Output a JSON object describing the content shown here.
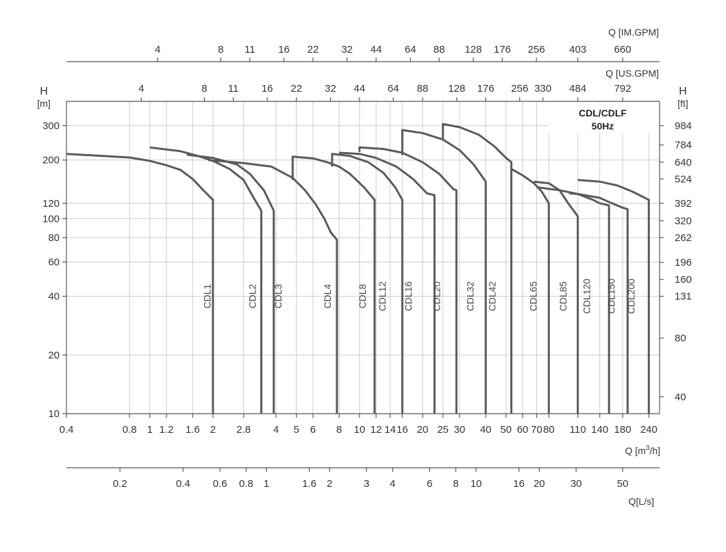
{
  "chart_data": {
    "type": "line",
    "title": "CDL/CDLF",
    "subtitle": "50Hz",
    "x_scale": "log",
    "y_scale": "log",
    "xlim": [
      0.4,
      270
    ],
    "ylim": [
      10,
      400
    ],
    "bottom_axis": {
      "label": "Q [m³/h]",
      "unit_main": "Q [m",
      "unit_sup": "3",
      "unit_tail": "/h]",
      "ticks": [
        {
          "label": "0.4",
          "value": 0.4
        },
        {
          "label": "0.8",
          "value": 0.8
        },
        {
          "label": "1",
          "value": 1
        },
        {
          "label": "1.2",
          "value": 1.2
        },
        {
          "label": "1.6",
          "value": 1.6
        },
        {
          "label": "2",
          "value": 2
        },
        {
          "label": "2.8",
          "value": 2.8
        },
        {
          "label": "4",
          "value": 4
        },
        {
          "label": "5",
          "value": 5
        },
        {
          "label": "6",
          "value": 6
        },
        {
          "label": "8",
          "value": 8
        },
        {
          "label": "10",
          "value": 10
        },
        {
          "label": "12",
          "value": 12
        },
        {
          "label": "14",
          "value": 14
        },
        {
          "label": "16",
          "value": 16
        },
        {
          "label": "20",
          "value": 20
        },
        {
          "label": "25",
          "value": 25
        },
        {
          "label": "30",
          "value": 30
        },
        {
          "label": "40",
          "value": 40
        },
        {
          "label": "50",
          "value": 50
        },
        {
          "label": "60",
          "value": 60
        },
        {
          "label": "70",
          "value": 70
        },
        {
          "label": "80",
          "value": 80
        },
        {
          "label": "110",
          "value": 110
        },
        {
          "label": "140",
          "value": 140
        },
        {
          "label": "180",
          "value": 180
        },
        {
          "label": "240",
          "value": 240
        }
      ]
    },
    "ls_axis": {
      "label": "Q[L/s]",
      "ticks": [
        {
          "label": "0.2",
          "value": 0.72
        },
        {
          "label": "0.4",
          "value": 1.44
        },
        {
          "label": "0.6",
          "value": 2.16
        },
        {
          "label": "0.8",
          "value": 2.88
        },
        {
          "label": "1",
          "value": 3.6
        },
        {
          "label": "1.6",
          "value": 5.76
        },
        {
          "label": "2",
          "value": 7.2
        },
        {
          "label": "3",
          "value": 10.8
        },
        {
          "label": "4",
          "value": 14.4
        },
        {
          "label": "6",
          "value": 21.6
        },
        {
          "label": "8",
          "value": 28.8
        },
        {
          "label": "10",
          "value": 36
        },
        {
          "label": "16",
          "value": 57.6
        },
        {
          "label": "20",
          "value": 72
        },
        {
          "label": "30",
          "value": 108
        },
        {
          "label": "50",
          "value": 180
        }
      ]
    },
    "usgpm_axis": {
      "label": "Q [US.GPM]",
      "ticks": [
        {
          "label": "4",
          "value": 0.91
        },
        {
          "label": "8",
          "value": 1.82
        },
        {
          "label": "11",
          "value": 2.5
        },
        {
          "label": "16",
          "value": 3.63
        },
        {
          "label": "22",
          "value": 5.0
        },
        {
          "label": "32",
          "value": 7.27
        },
        {
          "label": "44",
          "value": 10.0
        },
        {
          "label": "64",
          "value": 14.5
        },
        {
          "label": "88",
          "value": 20.0
        },
        {
          "label": "128",
          "value": 29.1
        },
        {
          "label": "176",
          "value": 40.0
        },
        {
          "label": "256",
          "value": 58.1
        },
        {
          "label": "330",
          "value": 75.0
        },
        {
          "label": "484",
          "value": 110.0
        },
        {
          "label": "792",
          "value": 180.0
        }
      ]
    },
    "imgpm_axis": {
      "label": "Q [IM.GPM]",
      "ticks": [
        {
          "label": "4",
          "value": 1.09
        },
        {
          "label": "8",
          "value": 2.18
        },
        {
          "label": "11",
          "value": 3.0
        },
        {
          "label": "16",
          "value": 4.36
        },
        {
          "label": "22",
          "value": 6.0
        },
        {
          "label": "32",
          "value": 8.72
        },
        {
          "label": "44",
          "value": 12.0
        },
        {
          "label": "64",
          "value": 17.5
        },
        {
          "label": "88",
          "value": 24.0
        },
        {
          "label": "128",
          "value": 34.9
        },
        {
          "label": "176",
          "value": 48.0
        },
        {
          "label": "256",
          "value": 69.8
        },
        {
          "label": "403",
          "value": 110.0
        },
        {
          "label": "660",
          "value": 180.0
        }
      ]
    },
    "left_axis": {
      "label": "H",
      "unit": "[m]",
      "ticks": [
        {
          "label": "300",
          "value": 300
        },
        {
          "label": "200",
          "value": 200
        },
        {
          "label": "120",
          "value": 120
        },
        {
          "label": "100",
          "value": 100
        },
        {
          "label": "80",
          "value": 80
        },
        {
          "label": "60",
          "value": 60
        },
        {
          "label": "40",
          "value": 40
        },
        {
          "label": "20",
          "value": 20
        },
        {
          "label": "10",
          "value": 10
        }
      ]
    },
    "right_axis": {
      "label": "H",
      "unit": "[ft]",
      "ticks": [
        {
          "label": "984",
          "value": 300
        },
        {
          "label": "784",
          "value": 239
        },
        {
          "label": "640",
          "value": 195
        },
        {
          "label": "524",
          "value": 160
        },
        {
          "label": "392",
          "value": 120
        },
        {
          "label": "320",
          "value": 97.5
        },
        {
          "label": "262",
          "value": 80
        },
        {
          "label": "196",
          "value": 59.7
        },
        {
          "label": "160",
          "value": 48.8
        },
        {
          "label": "131",
          "value": 40
        },
        {
          "label": "80",
          "value": 24.4
        },
        {
          "label": "40",
          "value": 12.2
        }
      ]
    },
    "v_grid_x": [
      0.8,
      1,
      1.2,
      1.6,
      2,
      2.8,
      4,
      5,
      6,
      8,
      10,
      12,
      14,
      16,
      20,
      25,
      30,
      40,
      50,
      60,
      70,
      80,
      110,
      140,
      180,
      240
    ],
    "h_grid_y": [
      300,
      200,
      120,
      100,
      80,
      60,
      40,
      20,
      10
    ],
    "series": [
      {
        "name": "CDL1",
        "label_x": 1.95,
        "label_y": 40,
        "points": [
          [
            0.4,
            215
          ],
          [
            0.8,
            206
          ],
          [
            1.0,
            198
          ],
          [
            1.2,
            188
          ],
          [
            1.4,
            178
          ],
          [
            1.6,
            160
          ],
          [
            1.8,
            140
          ],
          [
            2.0,
            125
          ],
          [
            2.0,
            10
          ]
        ]
      },
      {
        "name": "CDL2",
        "label_x": 3.2,
        "label_y": 40,
        "points": [
          [
            1.0,
            232
          ],
          [
            1.4,
            222
          ],
          [
            1.7,
            210
          ],
          [
            2.0,
            198
          ],
          [
            2.4,
            180
          ],
          [
            2.8,
            158
          ],
          [
            3.1,
            130
          ],
          [
            3.4,
            110
          ],
          [
            3.4,
            10
          ]
        ]
      },
      {
        "name": "CDL3",
        "label_x": 4.25,
        "label_y": 40,
        "points": [
          [
            1.5,
            213
          ],
          [
            2.0,
            205
          ],
          [
            2.6,
            190
          ],
          [
            3.0,
            170
          ],
          [
            3.5,
            140
          ],
          [
            3.9,
            110
          ],
          [
            3.9,
            10
          ]
        ]
      },
      {
        "name": "CDL4",
        "label_x": 7.3,
        "label_y": 40,
        "points": [
          [
            1.9,
            200
          ],
          [
            2.8,
            193
          ],
          [
            3.8,
            185
          ],
          [
            4.8,
            162
          ],
          [
            5.5,
            140
          ],
          [
            6.2,
            118
          ],
          [
            6.8,
            100
          ],
          [
            7.3,
            85
          ],
          [
            7.8,
            78
          ],
          [
            7.8,
            10
          ]
        ]
      },
      {
        "name": "CDL8",
        "label_x": 10.7,
        "label_y": 40,
        "points": [
          [
            4.8,
            158
          ],
          [
            4.8,
            208
          ],
          [
            6.0,
            204
          ],
          [
            7.0,
            195
          ],
          [
            8.0,
            185
          ],
          [
            9.0,
            170
          ],
          [
            10.5,
            145
          ],
          [
            11.8,
            125
          ],
          [
            11.8,
            10
          ]
        ]
      },
      {
        "name": "CDL12",
        "label_x": 13.3,
        "label_y": 40,
        "points": [
          [
            7.4,
            185
          ],
          [
            7.4,
            215
          ],
          [
            9.0,
            210
          ],
          [
            11.0,
            195
          ],
          [
            13.0,
            172
          ],
          [
            14.8,
            145
          ],
          [
            16.0,
            125
          ],
          [
            16.0,
            10
          ]
        ]
      },
      {
        "name": "CDL16",
        "label_x": 17.7,
        "label_y": 40,
        "points": [
          [
            8.0,
            218
          ],
          [
            10.0,
            215
          ],
          [
            12.0,
            205
          ],
          [
            15.0,
            185
          ],
          [
            18.0,
            160
          ],
          [
            21.0,
            135
          ],
          [
            22.8,
            132
          ],
          [
            22.8,
            10
          ]
        ]
      },
      {
        "name": "CDL20",
        "label_x": 24.2,
        "label_y": 40,
        "points": [
          [
            10.0,
            220
          ],
          [
            10.0,
            232
          ],
          [
            13.0,
            228
          ],
          [
            16.0,
            218
          ],
          [
            20.0,
            195
          ],
          [
            24.0,
            170
          ],
          [
            28.0,
            142
          ],
          [
            29.0,
            140
          ],
          [
            29.0,
            10
          ]
        ]
      },
      {
        "name": "CDL32",
        "label_x": 35,
        "label_y": 40,
        "points": [
          [
            16.0,
            212
          ],
          [
            16.0,
            285
          ],
          [
            20.0,
            275
          ],
          [
            25.0,
            255
          ],
          [
            30.0,
            225
          ],
          [
            35.0,
            190
          ],
          [
            40.0,
            155
          ],
          [
            40.0,
            10
          ]
        ]
      },
      {
        "name": "CDL42",
        "label_x": 44.5,
        "label_y": 40,
        "points": [
          [
            25.0,
            252
          ],
          [
            25.0,
            306
          ],
          [
            30.0,
            295
          ],
          [
            37.0,
            270
          ],
          [
            44.0,
            235
          ],
          [
            50.0,
            205
          ],
          [
            53.0,
            195
          ],
          [
            53.0,
            10
          ]
        ]
      },
      {
        "name": "CDL65",
        "label_x": 70,
        "label_y": 40,
        "points": [
          [
            53.0,
            180
          ],
          [
            60.0,
            167
          ],
          [
            68.0,
            152
          ],
          [
            74.0,
            138
          ],
          [
            80.0,
            120
          ],
          [
            80.0,
            10
          ]
        ]
      },
      {
        "name": "CDL85",
        "label_x": 97,
        "label_y": 40,
        "points": [
          [
            68.0,
            155
          ],
          [
            80.0,
            152
          ],
          [
            90.0,
            140
          ],
          [
            100.0,
            118
          ],
          [
            110.0,
            103
          ],
          [
            110.0,
            10
          ]
        ]
      },
      {
        "name": "CDL120",
        "label_x": 126,
        "label_y": 40,
        "points": [
          [
            70.0,
            145
          ],
          [
            90.0,
            140
          ],
          [
            110.0,
            134
          ],
          [
            130.0,
            125
          ],
          [
            140.0,
            120
          ],
          [
            150.0,
            118
          ],
          [
            155.0,
            117
          ],
          [
            155.0,
            10
          ]
        ]
      },
      {
        "name": "CDL150",
        "label_x": 165,
        "label_y": 40,
        "points": [
          [
            100.0,
            135
          ],
          [
            110.0,
            134
          ],
          [
            140.0,
            128
          ],
          [
            160.0,
            120
          ],
          [
            180.0,
            114
          ],
          [
            190.0,
            112
          ],
          [
            190.0,
            10
          ]
        ]
      },
      {
        "name": "CDL200",
        "label_x": 205,
        "label_y": 40,
        "points": [
          [
            110.0,
            158
          ],
          [
            140.0,
            155
          ],
          [
            170.0,
            148
          ],
          [
            200.0,
            138
          ],
          [
            240.0,
            125
          ],
          [
            240.0,
            10
          ]
        ]
      }
    ]
  }
}
